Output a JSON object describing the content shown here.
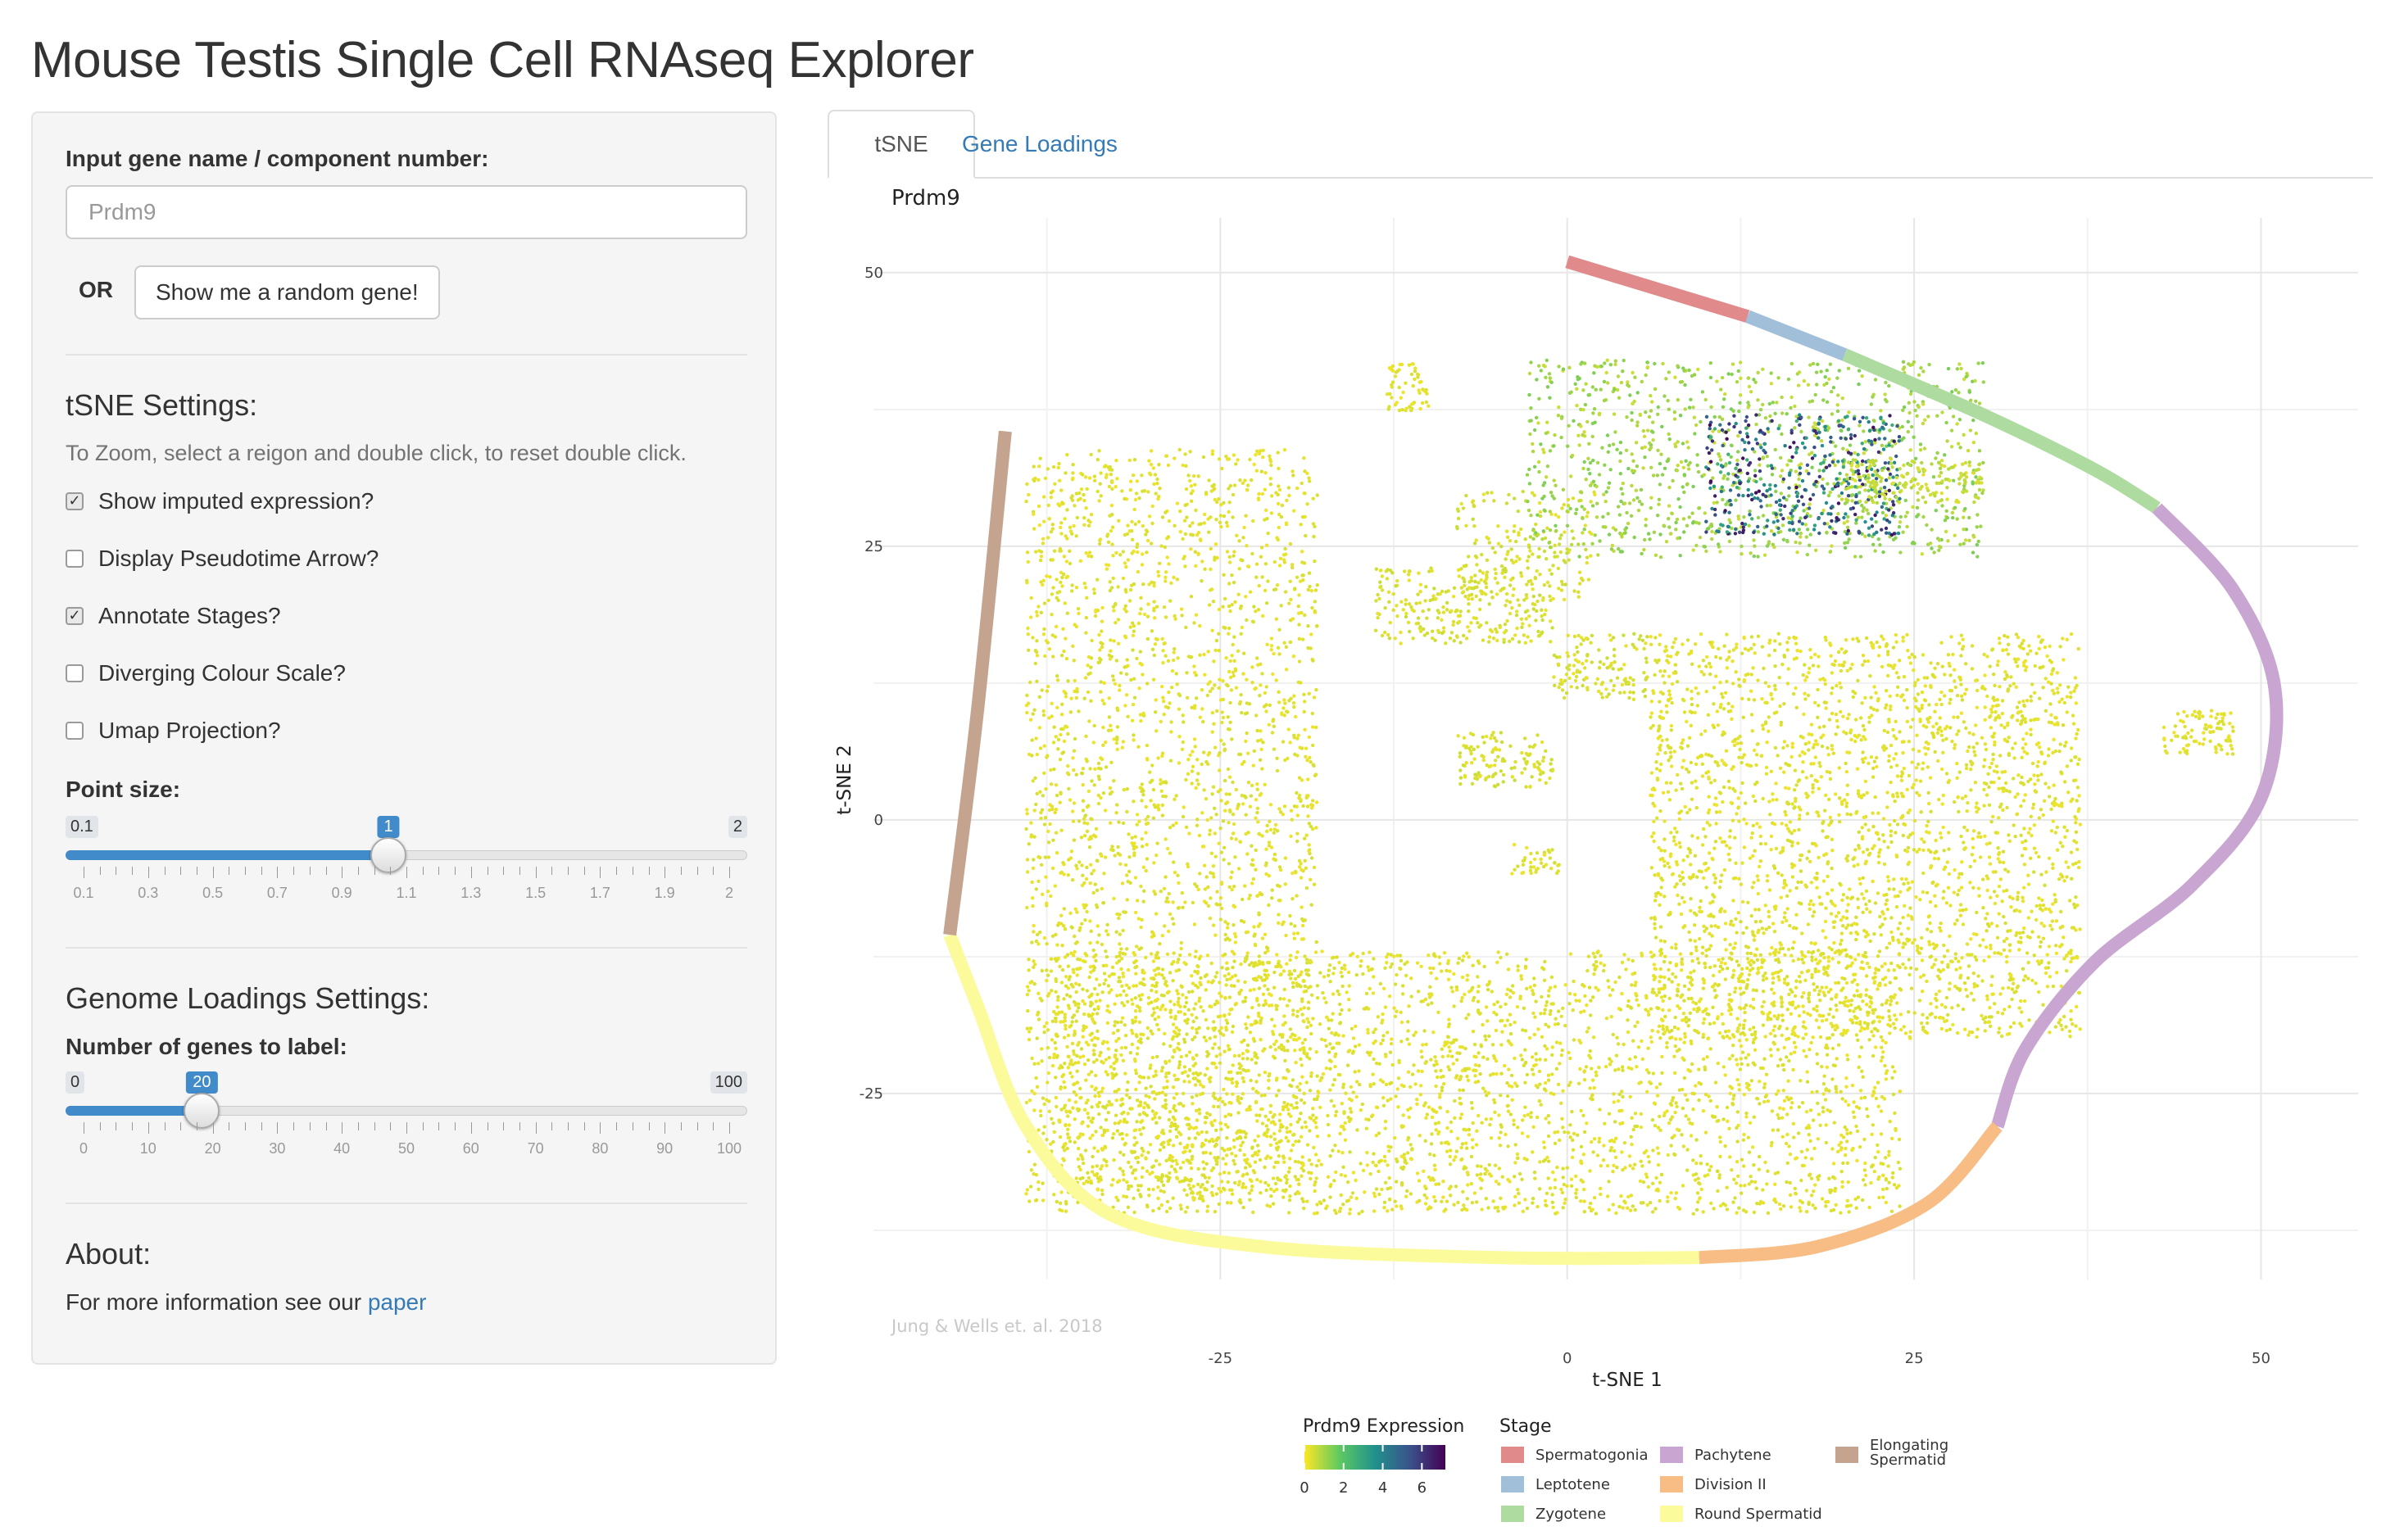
{
  "page": {
    "title": "Mouse Testis Single Cell RNAseq Explorer"
  },
  "sidebar": {
    "input_label": "Input gene name / component number:",
    "input_placeholder": "Prdm9",
    "or_label": "OR",
    "random_button": "Show me a random gene!",
    "tsne_heading": "tSNE Settings:",
    "zoom_help": "To Zoom, select a reigon and double click, to reset double click.",
    "checkboxes": [
      {
        "label": "Show imputed expression?",
        "checked": true
      },
      {
        "label": "Display Pseudotime Arrow?",
        "checked": false
      },
      {
        "label": "Annotate Stages?",
        "checked": true
      },
      {
        "label": "Diverging Colour Scale?",
        "checked": false
      },
      {
        "label": "Umap Projection?",
        "checked": false
      }
    ],
    "point_size": {
      "label": "Point size:",
      "min": "0.1",
      "max": "2",
      "value": "1",
      "min_num": 0.1,
      "max_num": 2,
      "value_num": 1,
      "tick_labels": [
        "0.1",
        "0.3",
        "0.5",
        "0.7",
        "0.9",
        "1.1",
        "1.3",
        "1.5",
        "1.7",
        "1.9",
        "2"
      ]
    },
    "genome_heading": "Genome Loadings Settings:",
    "genes_label": {
      "label": "Number of genes to label:",
      "min": "0",
      "max": "100",
      "value": "20",
      "min_num": 0,
      "max_num": 100,
      "value_num": 20,
      "tick_labels": [
        "0",
        "10",
        "20",
        "30",
        "40",
        "50",
        "60",
        "70",
        "80",
        "90",
        "100"
      ]
    },
    "about_heading": "About:",
    "about_text": "For more information see our ",
    "about_link": "paper"
  },
  "tabs": [
    {
      "label": "tSNE",
      "active": true
    },
    {
      "label": "Gene Loadings",
      "active": false
    }
  ],
  "chart_data": {
    "type": "scatter",
    "title": "Prdm9",
    "xlabel": "t-SNE 1",
    "ylabel": "t-SNE 2",
    "xlim": [
      -50,
      57
    ],
    "ylim": [
      -42,
      55
    ],
    "xticks": [
      "-25",
      "0",
      "25",
      "50"
    ],
    "xtick_values": [
      -25,
      0,
      25,
      50
    ],
    "yticks": [
      "50",
      "25",
      "0",
      "-25"
    ],
    "ytick_values": [
      50,
      25,
      0,
      -25
    ],
    "grid": true,
    "caption": "Jung & Wells et. al. 2018",
    "colorbar": {
      "title": "Prdm9 Expression",
      "ticks": [
        "0",
        "2",
        "4",
        "6"
      ],
      "tick_values": [
        0,
        2,
        4,
        6
      ],
      "range": [
        0,
        7.2
      ],
      "colors": [
        "#fde725",
        "#5ec962",
        "#21918c",
        "#3b528b",
        "#440154"
      ]
    },
    "stage_legend": {
      "title": "Stage",
      "items": [
        {
          "name": "Spermatogonia",
          "color": "#e08a8b"
        },
        {
          "name": "Leptotene",
          "color": "#a2bfd9"
        },
        {
          "name": "Zygotene",
          "color": "#addba0"
        },
        {
          "name": "Pachytene",
          "color": "#c9a6d1"
        },
        {
          "name": "Division II",
          "color": "#f7bd84"
        },
        {
          "name": "Round Spermatid",
          "color": "#fbfb9c"
        },
        {
          "name": "Elongating Spermatid",
          "color": "#c4a48f"
        }
      ]
    },
    "stage_path": [
      {
        "stage": "Spermatogonia",
        "points": [
          [
            0,
            51
          ],
          [
            13,
            46
          ]
        ]
      },
      {
        "stage": "Leptotene",
        "points": [
          [
            13,
            46
          ],
          [
            20,
            42.5
          ]
        ]
      },
      {
        "stage": "Zygotene",
        "points": [
          [
            20,
            42.5
          ],
          [
            30,
            37
          ],
          [
            38,
            32
          ],
          [
            42.5,
            28.5
          ]
        ]
      },
      {
        "stage": "Pachytene",
        "points": [
          [
            42.5,
            28.5
          ],
          [
            48,
            21
          ],
          [
            51,
            12
          ],
          [
            50,
            2
          ],
          [
            45,
            -6
          ],
          [
            38,
            -13
          ],
          [
            33,
            -21
          ],
          [
            31,
            -28
          ]
        ]
      },
      {
        "stage": "Division II",
        "points": [
          [
            31,
            -28
          ],
          [
            26,
            -35
          ],
          [
            18,
            -39
          ],
          [
            9.5,
            -40
          ]
        ]
      },
      {
        "stage": "Round Spermatid",
        "points": [
          [
            9.5,
            -40
          ],
          [
            -5,
            -40
          ],
          [
            -22,
            -39
          ],
          [
            -33,
            -36
          ],
          [
            -39,
            -28
          ],
          [
            -42.5,
            -17
          ],
          [
            -44.5,
            -10.5
          ]
        ]
      },
      {
        "stage": "Elongating Spermatid",
        "points": [
          [
            -44.5,
            -10.5
          ],
          [
            -42.5,
            10
          ],
          [
            -40.5,
            35.5
          ]
        ]
      }
    ],
    "clusters": [
      {
        "name": "left-block",
        "x": [
          -39,
          -18
        ],
        "y": [
          -35,
          34
        ],
        "n": 2600,
        "expr": 0.3
      },
      {
        "name": "bottom-band",
        "x": [
          -37,
          24
        ],
        "y": [
          -36,
          -12
        ],
        "n": 3000,
        "expr": 0.3
      },
      {
        "name": "right-block",
        "x": [
          6,
          37
        ],
        "y": [
          -20,
          17
        ],
        "n": 2600,
        "expr": 0.3
      },
      {
        "name": "top-left-small",
        "x": [
          -14,
          -1
        ],
        "y": [
          16,
          23
        ],
        "n": 260,
        "expr": 0.4
      },
      {
        "name": "top-mid-small",
        "x": [
          -8,
          2
        ],
        "y": [
          20,
          30
        ],
        "n": 180,
        "expr": 0.4
      },
      {
        "name": "top-cluster",
        "x": [
          -3,
          30
        ],
        "y": [
          24,
          42
        ],
        "n": 1100,
        "expr": 1.0
      },
      {
        "name": "prdm9-high",
        "x": [
          10,
          24
        ],
        "y": [
          26,
          37
        ],
        "n": 420,
        "expr": 5.0
      },
      {
        "name": "top-small-isolated",
        "x": [
          -13,
          -10
        ],
        "y": [
          37,
          42
        ],
        "n": 60,
        "expr": 0.3
      },
      {
        "name": "mid-small",
        "x": [
          -8,
          -1
        ],
        "y": [
          3,
          8
        ],
        "n": 120,
        "expr": 0.4
      },
      {
        "name": "small-lower",
        "x": [
          -4,
          -0.5
        ],
        "y": [
          -5,
          -2
        ],
        "n": 40,
        "expr": 0.3
      },
      {
        "name": "far-right",
        "x": [
          43,
          48
        ],
        "y": [
          6,
          10
        ],
        "n": 90,
        "expr": 0.3
      },
      {
        "name": "center-small",
        "x": [
          -1,
          6
        ],
        "y": [
          11,
          17
        ],
        "n": 130,
        "expr": 0.4
      },
      {
        "name": "right-top-mid",
        "x": [
          20,
          30
        ],
        "y": [
          29,
          33
        ],
        "n": 150,
        "expr": 0.6
      }
    ]
  }
}
